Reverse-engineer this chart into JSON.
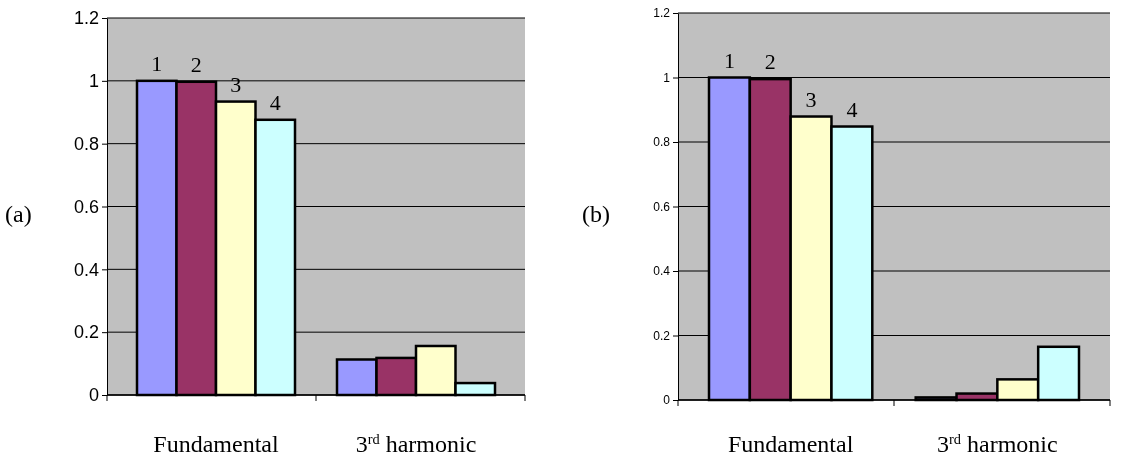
{
  "chart_data": [
    {
      "type": "bar",
      "title": "(a)",
      "categories": [
        "Fundamental",
        "3$^{rd}$ harmonic"
      ],
      "series": [
        {
          "name": "1",
          "color": "#9999ff",
          "values": [
            1.0,
            0.113
          ]
        },
        {
          "name": "2",
          "color": "#993366",
          "values": [
            0.997,
            0.118
          ]
        },
        {
          "name": "3",
          "color": "#ffffcc",
          "values": [
            0.934,
            0.156
          ]
        },
        {
          "name": "4",
          "color": "#ccffff",
          "values": [
            0.876,
            0.038
          ]
        }
      ],
      "ylim": [
        0,
        1.2
      ],
      "yticks": [
        0,
        0.2,
        0.4,
        0.6,
        0.8,
        1,
        1.2
      ],
      "grid": "y",
      "legend": false
    },
    {
      "type": "bar",
      "title": "(b)",
      "categories": [
        "Fundamental",
        "3$^{rd}$ harmonic"
      ],
      "series": [
        {
          "name": "1",
          "color": "#9999ff",
          "values": [
            1.0,
            0.008
          ]
        },
        {
          "name": "2",
          "color": "#993366",
          "values": [
            0.995,
            0.02
          ]
        },
        {
          "name": "3",
          "color": "#ffffcc",
          "values": [
            0.879,
            0.064
          ]
        },
        {
          "name": "4",
          "color": "#ccffff",
          "values": [
            0.848,
            0.165
          ]
        }
      ],
      "ylim": [
        0,
        1.2
      ],
      "yticks": [
        0,
        0.2,
        0.4,
        0.6,
        0.8,
        1,
        1.2
      ],
      "grid": "y",
      "legend": false
    }
  ]
}
